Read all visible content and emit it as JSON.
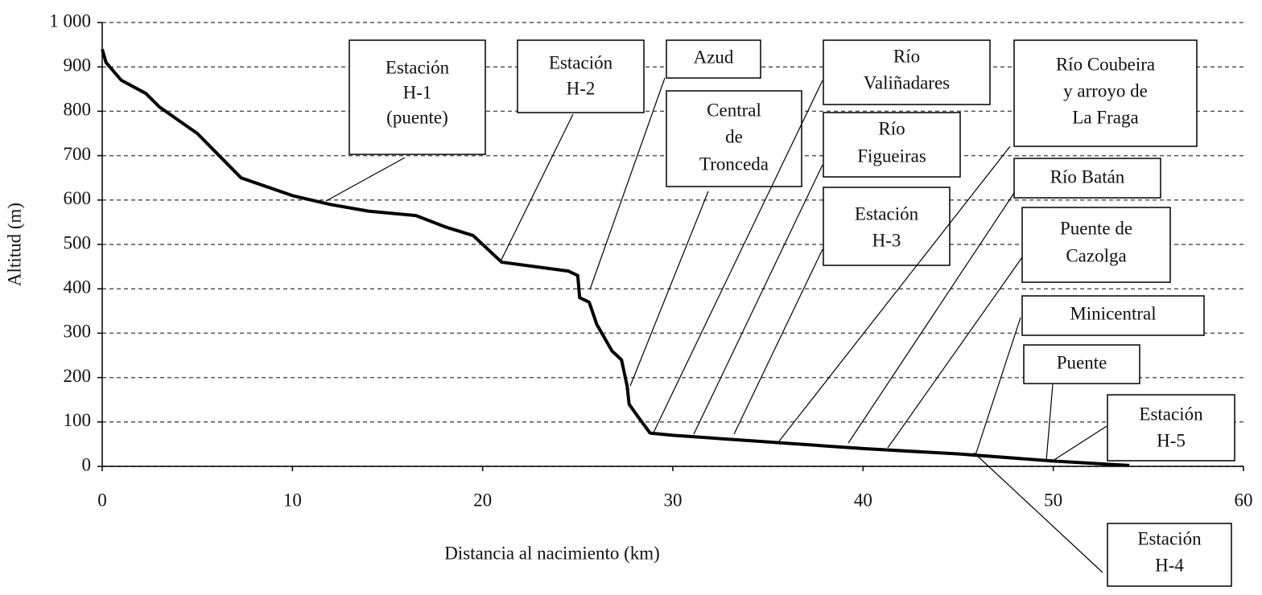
{
  "chart_data": {
    "type": "line",
    "xlabel": "Distancia al nacimiento (km)",
    "ylabel": "Altitud (m)",
    "x": [
      0,
      0.2,
      1,
      2.3,
      3,
      5,
      7.3,
      10,
      12,
      14,
      16.5,
      18,
      19.5,
      21,
      24.5,
      25,
      25.1,
      25.6,
      26,
      26.8,
      27.3,
      27.6,
      27.7,
      28.2,
      28.8,
      30,
      35,
      40,
      45,
      50,
      54
    ],
    "series": [
      {
        "color": "#000000",
        "values": [
          940,
          910,
          870,
          840,
          810,
          750,
          650,
          610,
          590,
          575,
          565,
          540,
          520,
          460,
          440,
          430,
          380,
          370,
          320,
          260,
          240,
          180,
          140,
          110,
          75,
          70,
          55,
          40,
          28,
          12,
          2
        ]
      }
    ],
    "xlim": [
      0,
      60
    ],
    "xticks": [
      0,
      10,
      20,
      30,
      40,
      50,
      60
    ],
    "ylim": [
      0,
      1000
    ],
    "yticks": [
      0,
      100,
      200,
      300,
      400,
      500,
      600,
      700,
      800,
      900,
      {
        "value": 1000,
        "label": "1 000"
      }
    ],
    "grid": true,
    "annotations": [
      [
        "Estación",
        "H-1",
        "(puente)"
      ],
      [
        "Estación",
        "H-2"
      ],
      [
        "Azud"
      ],
      [
        "Central",
        "de",
        "Tronceda"
      ],
      [
        "Río",
        "Valiñadares"
      ],
      [
        "Río",
        "Figueiras"
      ],
      [
        "Estación",
        "H-3"
      ],
      [
        "Río Coubeira",
        "y arroyo de",
        "La Fraga"
      ],
      [
        "Río Batán"
      ],
      [
        "Puente de",
        "Cazolga"
      ],
      [
        "Minicentral"
      ],
      [
        "Puente"
      ],
      [
        "Estación",
        "H-5"
      ],
      [
        "Estación",
        "H-4"
      ]
    ]
  }
}
